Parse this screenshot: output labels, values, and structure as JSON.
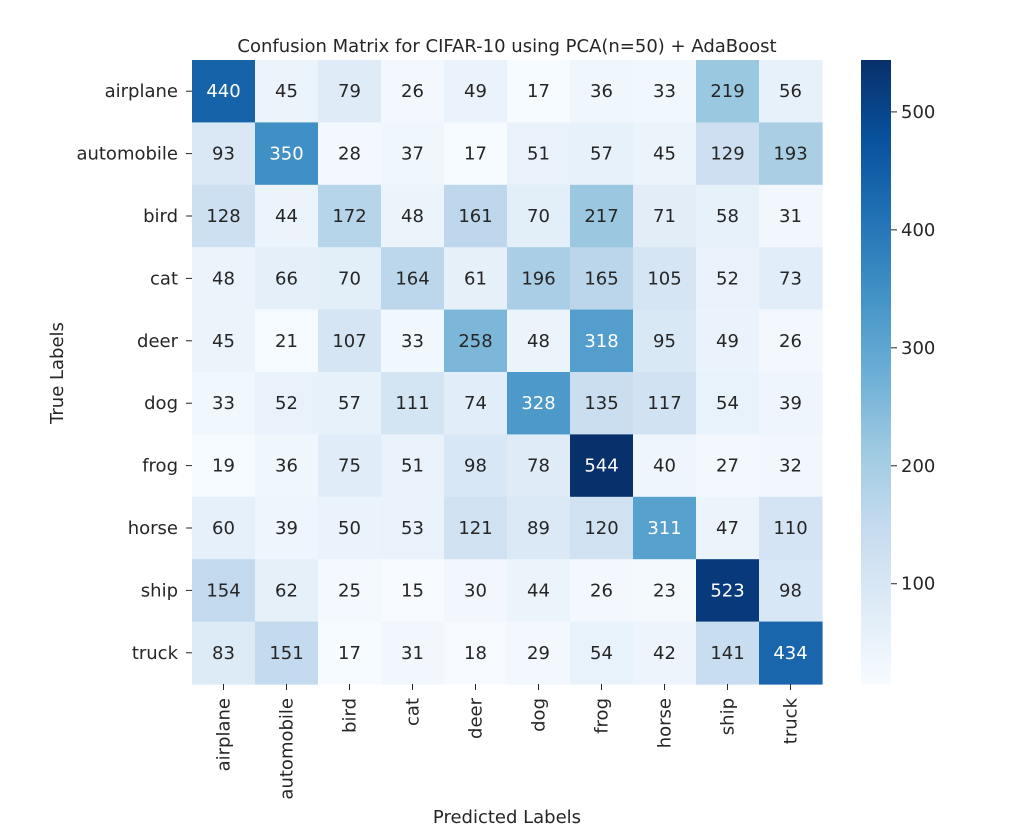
{
  "chart_data": {
    "type": "heatmap",
    "title": "Confusion Matrix for CIFAR-10 using PCA(n=50) + AdaBoost",
    "xlabel": "Predicted Labels",
    "ylabel": "True Labels",
    "rows": [
      "airplane",
      "automobile",
      "bird",
      "cat",
      "deer",
      "dog",
      "frog",
      "horse",
      "ship",
      "truck"
    ],
    "columns": [
      "airplane",
      "automobile",
      "bird",
      "cat",
      "deer",
      "dog",
      "frog",
      "horse",
      "ship",
      "truck"
    ],
    "values": [
      [
        440,
        45,
        79,
        26,
        49,
        17,
        36,
        33,
        219,
        56
      ],
      [
        93,
        350,
        28,
        37,
        17,
        51,
        57,
        45,
        129,
        193
      ],
      [
        128,
        44,
        172,
        48,
        161,
        70,
        217,
        71,
        58,
        31
      ],
      [
        48,
        66,
        70,
        164,
        61,
        196,
        165,
        105,
        52,
        73
      ],
      [
        45,
        21,
        107,
        33,
        258,
        48,
        318,
        95,
        49,
        26
      ],
      [
        33,
        52,
        57,
        111,
        74,
        328,
        135,
        117,
        54,
        39
      ],
      [
        19,
        36,
        75,
        51,
        98,
        78,
        544,
        40,
        27,
        32
      ],
      [
        60,
        39,
        50,
        53,
        121,
        89,
        120,
        311,
        47,
        110
      ],
      [
        154,
        62,
        25,
        15,
        30,
        44,
        26,
        23,
        523,
        98
      ],
      [
        83,
        151,
        17,
        31,
        18,
        29,
        54,
        42,
        141,
        434
      ]
    ],
    "colormap": "Blues",
    "color_range": [
      15,
      544
    ],
    "colorbar_ticks": [
      100,
      200,
      300,
      400,
      500
    ],
    "colorbar_position": "right",
    "grid": false
  }
}
